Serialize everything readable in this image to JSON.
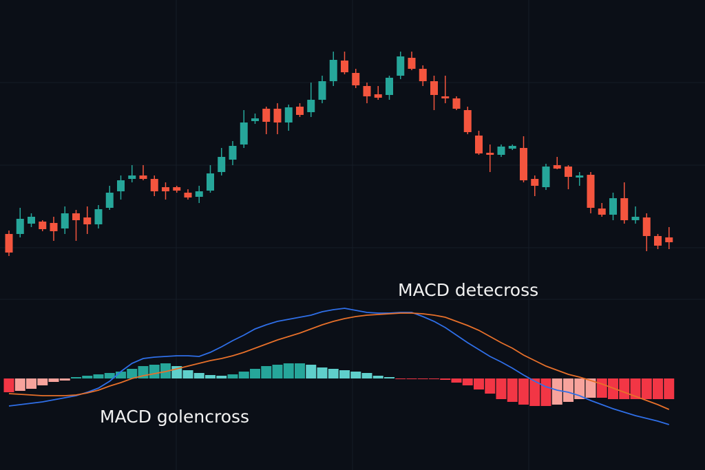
{
  "chart_data": [
    {
      "type": "candlestick",
      "ylim": [
        0,
        340
      ],
      "up_color": "#26a69a",
      "down_color": "#f4553e",
      "open": [
        60,
        60,
        75,
        78,
        76,
        68,
        90,
        84,
        74,
        98,
        122,
        140,
        145,
        140,
        128,
        128,
        120,
        114,
        123,
        150,
        168,
        190,
        224,
        242,
        242,
        222,
        245,
        237,
        255,
        282,
        312,
        294,
        275,
        263,
        262,
        290,
        316,
        300,
        282,
        260,
        257,
        240,
        203,
        178,
        175,
        184,
        185,
        140,
        128,
        160,
        158,
        142,
        146,
        97,
        88,
        112,
        80,
        84,
        57,
        55
      ],
      "high": [
        65,
        98,
        90,
        80,
        85,
        100,
        95,
        100,
        102,
        130,
        145,
        160,
        160,
        145,
        135,
        130,
        125,
        130,
        160,
        185,
        195,
        240,
        235,
        245,
        250,
        248,
        250,
        280,
        290,
        325,
        325,
        300,
        280,
        275,
        290,
        325,
        325,
        305,
        290,
        290,
        260,
        245,
        210,
        190,
        190,
        190,
        202,
        145,
        162,
        172,
        160,
        150,
        150,
        105,
        120,
        135,
        100,
        90,
        60,
        70
      ],
      "low": [
        28,
        55,
        70,
        64,
        50,
        60,
        50,
        60,
        68,
        95,
        110,
        135,
        138,
        115,
        110,
        120,
        110,
        105,
        120,
        145,
        160,
        185,
        220,
        205,
        205,
        210,
        230,
        230,
        250,
        275,
        292,
        272,
        250,
        255,
        255,
        285,
        298,
        275,
        240,
        250,
        240,
        205,
        175,
        150,
        172,
        182,
        135,
        115,
        124,
        154,
        125,
        130,
        90,
        85,
        80,
        75,
        75,
        35,
        38,
        38
      ],
      "close": [
        33,
        82,
        85,
        67,
        64,
        90,
        80,
        74,
        96,
        120,
        138,
        145,
        140,
        122,
        122,
        123,
        113,
        122,
        148,
        172,
        188,
        222,
        228,
        223,
        222,
        244,
        233,
        255,
        282,
        313,
        295,
        276,
        260,
        258,
        287,
        318,
        300,
        282,
        262,
        257,
        242,
        208,
        177,
        175,
        187,
        188,
        138,
        130,
        158,
        155,
        143,
        145,
        98,
        88,
        112,
        80,
        85,
        57,
        43,
        48
      ]
    },
    {
      "type": "macd",
      "ylim": [
        -120,
        120
      ],
      "histogram": {
        "colors": {
          "up_strong": "#26a69a",
          "up_weak": "#5fcfcb",
          "down_strong": "#f23645",
          "down_weak": "#f7a39c"
        },
        "values": [
          -20,
          -18,
          -15,
          -10,
          -5,
          -3,
          2,
          4,
          6,
          8,
          10,
          14,
          18,
          20,
          22,
          18,
          12,
          8,
          5,
          4,
          6,
          10,
          14,
          18,
          20,
          22,
          22,
          20,
          16,
          14,
          12,
          10,
          8,
          4,
          2,
          -1,
          -1,
          -1,
          -1,
          -2,
          -6,
          -10,
          -16,
          -22,
          -30,
          -34,
          -38,
          -40,
          -40,
          -38,
          -34,
          -30,
          -28,
          -28,
          -30,
          -30,
          -30,
          -30,
          -30,
          -30
        ]
      },
      "series": [
        {
          "color": "#2f6fe8",
          "values": [
            -40,
            -38,
            -36,
            -34,
            -31,
            -28,
            -25,
            -20,
            -14,
            -4,
            10,
            22,
            29,
            31,
            32,
            33,
            33,
            32,
            38,
            46,
            55,
            63,
            72,
            78,
            83,
            86,
            89,
            92,
            97,
            100,
            102,
            99,
            96,
            95,
            95,
            96,
            96,
            90,
            83,
            74,
            63,
            52,
            42,
            32,
            24,
            15,
            5,
            -4,
            -12,
            -17,
            -20,
            -25,
            -32,
            -38,
            -44,
            -49,
            -54,
            -58,
            -62,
            -67
          ]
        },
        {
          "color": "#e8702a",
          "values": [
            -22,
            -23,
            -24,
            -25,
            -25,
            -25,
            -24,
            -21,
            -17,
            -11,
            -6,
            0,
            4,
            7,
            10,
            14,
            18,
            22,
            26,
            29,
            33,
            38,
            44,
            50,
            56,
            61,
            66,
            72,
            78,
            83,
            87,
            90,
            92,
            93,
            94,
            95,
            95,
            94,
            92,
            89,
            83,
            77,
            70,
            61,
            52,
            44,
            34,
            26,
            18,
            12,
            6,
            2,
            -3,
            -8,
            -14,
            -20,
            -26,
            -32,
            -38,
            -45
          ]
        }
      ],
      "annotations": [
        "MACD detecross",
        "MACD golencross"
      ]
    }
  ]
}
